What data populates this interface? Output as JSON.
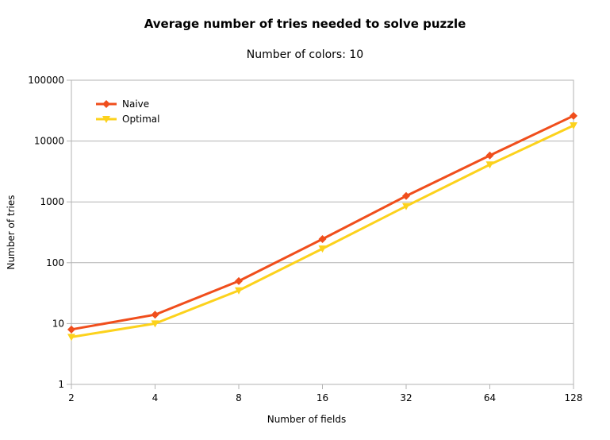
{
  "chart_data": {
    "type": "line",
    "title": "Average number of tries needed to solve puzzle",
    "subtitle": "Number of colors: 10",
    "xlabel": "Number of fields",
    "ylabel": "Number of tries",
    "x_scale": "log2",
    "y_scale": "log10",
    "categories": [
      "2",
      "4",
      "8",
      "16",
      "32",
      "64",
      "128"
    ],
    "x": [
      2,
      4,
      8,
      16,
      32,
      64,
      128
    ],
    "y_ticks": [
      "1",
      "10",
      "100",
      "1000",
      "10000",
      "100000"
    ],
    "ylim": [
      1,
      100000
    ],
    "grid": true,
    "legend_position": "top-left",
    "series": [
      {
        "name": "Naive",
        "color": "#f04e1c",
        "marker": "diamond",
        "values": [
          8,
          14,
          50,
          245,
          1250,
          5800,
          26000
        ]
      },
      {
        "name": "Optimal",
        "color": "#fcd21c",
        "marker": "triangle-down",
        "values": [
          6,
          10,
          35,
          170,
          850,
          4100,
          18000
        ]
      }
    ]
  }
}
